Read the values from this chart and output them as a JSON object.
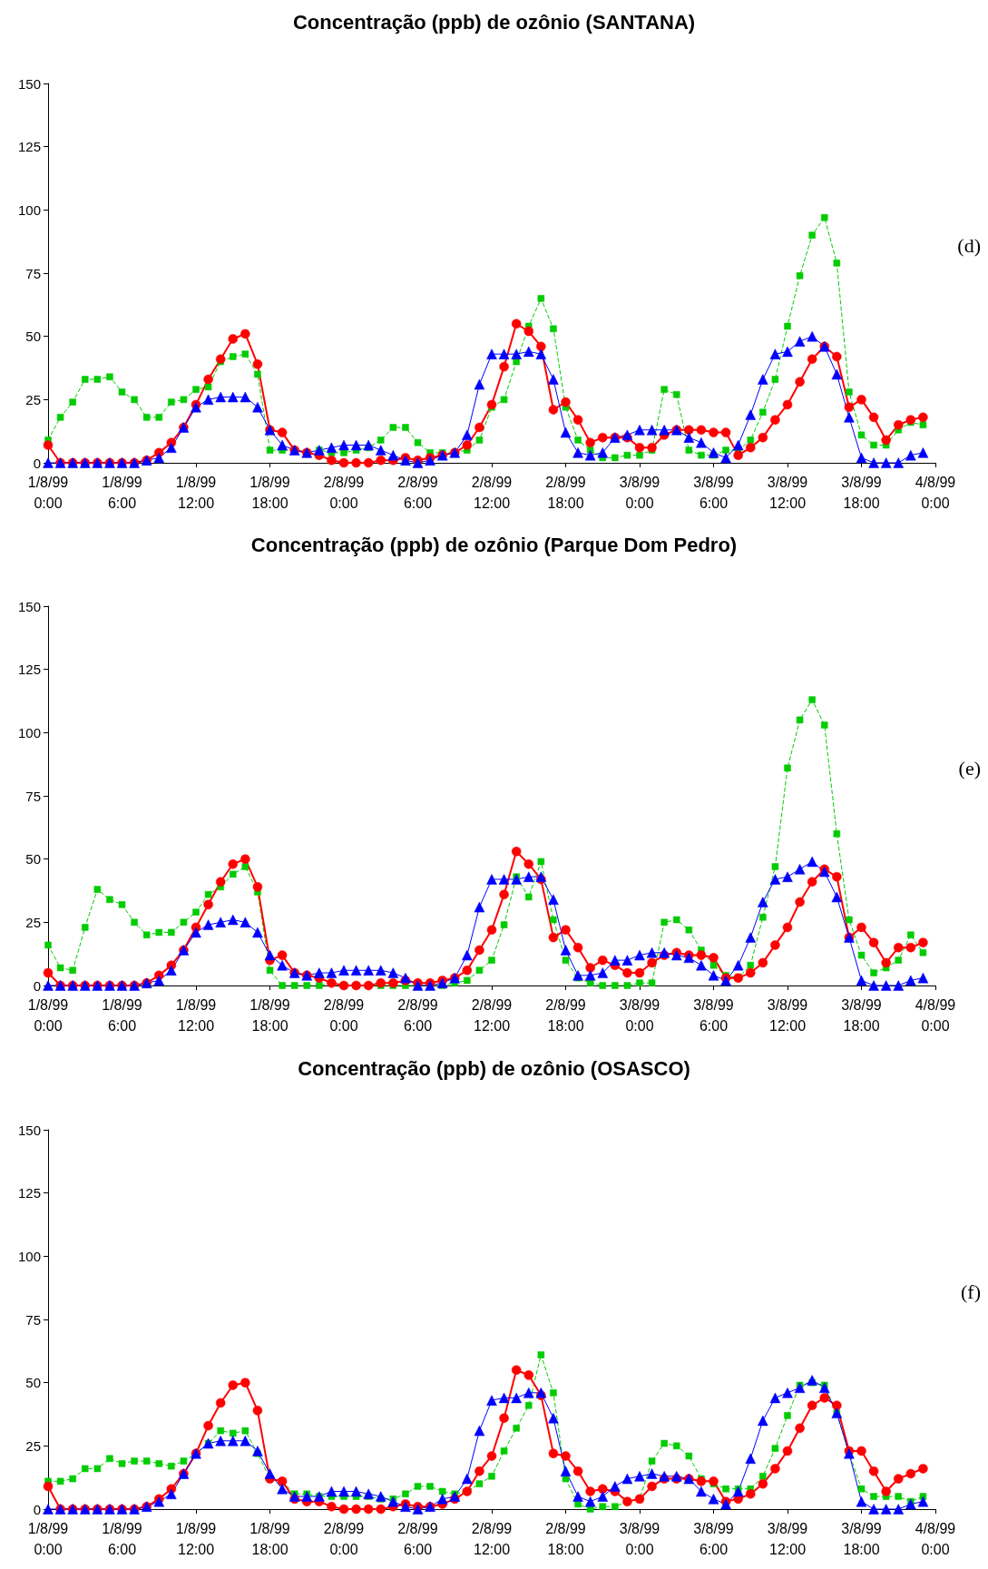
{
  "chart_data": [
    {
      "type": "line",
      "title": "Concentração (ppb) de ozônio (SANTANA)",
      "annotations": [
        "(d)"
      ],
      "categories": [
        "1/8/99\n0:00",
        null,
        null,
        null,
        null,
        null,
        "1/8/99\n6:00",
        null,
        null,
        null,
        null,
        null,
        "1/8/99\n12:00",
        null,
        null,
        null,
        null,
        null,
        "1/8/99\n18:00",
        null,
        null,
        null,
        null,
        null,
        "2/8/99\n0:00",
        null,
        null,
        null,
        null,
        null,
        "2/8/99\n6:00",
        null,
        null,
        null,
        null,
        null,
        "2/8/99\n12:00",
        null,
        null,
        null,
        null,
        null,
        "2/8/99\n18:00",
        null,
        null,
        null,
        null,
        null,
        "3/8/99\n0:00",
        null,
        null,
        null,
        null,
        null,
        "3/8/99\n6:00",
        null,
        null,
        null,
        null,
        null,
        "3/8/99\n12:00",
        null,
        null,
        null,
        null,
        null,
        "3/8/99\n18:00",
        null,
        null,
        null,
        null,
        null,
        "4/8/99\n0:00"
      ],
      "ylim": [
        0,
        150
      ],
      "yticks": [
        0,
        25,
        50,
        75,
        100,
        125,
        150
      ],
      "grid": false,
      "series": [
        {
          "color": "#00cc00",
          "marker": "square",
          "line_style": "dashed",
          "values": [
            9,
            18,
            24,
            33,
            33,
            34,
            28,
            25,
            18,
            18,
            24,
            25,
            29,
            30,
            40,
            42,
            43,
            35,
            5,
            5,
            5,
            4,
            5,
            4,
            4,
            5,
            6,
            9,
            14,
            14,
            8,
            4,
            4,
            4,
            5,
            9,
            22,
            25,
            40,
            54,
            65,
            53,
            22,
            9,
            5,
            2,
            2,
            3,
            3,
            5,
            29,
            27,
            5,
            3,
            3,
            5,
            5,
            9,
            20,
            33,
            54,
            74,
            90,
            97,
            79,
            28,
            11,
            7,
            7,
            13,
            16,
            15,
            null
          ]
        },
        {
          "color": "#ff0000",
          "marker": "circle",
          "line_style": "solid",
          "values": [
            7,
            0,
            0,
            0,
            0,
            0,
            0,
            0,
            1,
            4,
            8,
            14,
            23,
            33,
            41,
            49,
            51,
            39,
            13,
            12,
            5,
            4,
            3,
            1,
            0,
            0,
            0,
            1,
            1,
            2,
            1,
            2,
            3,
            4,
            7,
            14,
            23,
            38,
            55,
            52,
            46,
            21,
            24,
            17,
            8,
            10,
            10,
            10,
            6,
            6,
            11,
            13,
            13,
            13,
            12,
            12,
            3,
            6,
            10,
            17,
            23,
            32,
            41,
            46,
            42,
            22,
            25,
            18,
            9,
            15,
            17,
            18,
            null
          ]
        },
        {
          "color": "#0000ff",
          "marker": "triangle",
          "line_style": "solid",
          "values": [
            0,
            0,
            0,
            0,
            0,
            0,
            0,
            0,
            1,
            2,
            6,
            14,
            22,
            25,
            26,
            26,
            26,
            22,
            13,
            7,
            5,
            4,
            5,
            6,
            7,
            7,
            7,
            5,
            3,
            1,
            0,
            1,
            3,
            4,
            11,
            31,
            43,
            43,
            43,
            44,
            43,
            33,
            12,
            4,
            3,
            4,
            10,
            11,
            13,
            13,
            13,
            13,
            10,
            8,
            4,
            2,
            7,
            19,
            33,
            43,
            44,
            48,
            50,
            46,
            35,
            18,
            2,
            0,
            0,
            0,
            3,
            4,
            null
          ]
        }
      ]
    },
    {
      "type": "line",
      "title": "Concentração (ppb) de ozônio (Parque Dom Pedro)",
      "annotations": [
        "(e)"
      ],
      "categories": [
        "1/8/99\n0:00",
        null,
        null,
        null,
        null,
        null,
        "1/8/99\n6:00",
        null,
        null,
        null,
        null,
        null,
        "1/8/99\n12:00",
        null,
        null,
        null,
        null,
        null,
        "1/8/99\n18:00",
        null,
        null,
        null,
        null,
        null,
        "2/8/99\n0:00",
        null,
        null,
        null,
        null,
        null,
        "2/8/99\n6:00",
        null,
        null,
        null,
        null,
        null,
        "2/8/99\n12:00",
        null,
        null,
        null,
        null,
        null,
        "2/8/99\n18:00",
        null,
        null,
        null,
        null,
        null,
        "3/8/99\n0:00",
        null,
        null,
        null,
        null,
        null,
        "3/8/99\n6:00",
        null,
        null,
        null,
        null,
        null,
        "3/8/99\n12:00",
        null,
        null,
        null,
        null,
        null,
        "3/8/99\n18:00",
        null,
        null,
        null,
        null,
        null,
        "4/8/99\n0:00"
      ],
      "ylim": [
        0,
        150
      ],
      "yticks": [
        0,
        25,
        50,
        75,
        100,
        125,
        150
      ],
      "grid": false,
      "series": [
        {
          "color": "#00cc00",
          "marker": "square",
          "line_style": "dashed",
          "values": [
            16,
            7,
            6,
            23,
            38,
            34,
            32,
            25,
            20,
            21,
            21,
            25,
            29,
            36,
            39,
            44,
            47,
            37,
            6,
            0,
            0,
            0,
            0,
            1,
            0,
            0,
            0,
            0,
            0,
            0,
            0,
            0,
            0,
            1,
            2,
            6,
            10,
            24,
            43,
            35,
            49,
            26,
            10,
            3,
            1,
            0,
            0,
            0,
            1,
            1,
            25,
            26,
            22,
            14,
            8,
            4,
            3,
            8,
            27,
            47,
            86,
            105,
            113,
            103,
            60,
            26,
            12,
            5,
            7,
            10,
            20,
            13,
            null
          ]
        },
        {
          "color": "#ff0000",
          "marker": "circle",
          "line_style": "solid",
          "values": [
            5,
            0,
            0,
            0,
            0,
            0,
            0,
            0,
            1,
            4,
            8,
            14,
            23,
            32,
            41,
            48,
            50,
            39,
            10,
            12,
            5,
            4,
            3,
            1,
            0,
            0,
            0,
            1,
            1,
            2,
            1,
            1,
            2,
            3,
            6,
            14,
            22,
            36,
            53,
            48,
            42,
            19,
            22,
            15,
            7,
            10,
            8,
            5,
            5,
            9,
            12,
            13,
            12,
            12,
            11,
            3,
            3,
            5,
            9,
            16,
            23,
            33,
            41,
            46,
            43,
            19,
            23,
            17,
            9,
            15,
            15,
            17,
            null
          ]
        },
        {
          "color": "#0000ff",
          "marker": "triangle",
          "line_style": "solid",
          "values": [
            0,
            0,
            0,
            0,
            0,
            0,
            0,
            0,
            1,
            2,
            6,
            14,
            21,
            24,
            25,
            26,
            25,
            21,
            12,
            8,
            5,
            4,
            5,
            5,
            6,
            6,
            6,
            6,
            5,
            3,
            0,
            0,
            1,
            3,
            12,
            31,
            42,
            42,
            42,
            43,
            43,
            34,
            14,
            4,
            4,
            5,
            10,
            10,
            12,
            13,
            13,
            12,
            11,
            8,
            4,
            2,
            8,
            19,
            33,
            42,
            43,
            46,
            49,
            45,
            35,
            19,
            2,
            0,
            0,
            0,
            2,
            3,
            null
          ]
        }
      ]
    },
    {
      "type": "line",
      "title": "Concentração (ppb) de ozônio (OSASCO)",
      "annotations": [
        "(f)"
      ],
      "categories": [
        "1/8/99\n0:00",
        null,
        null,
        null,
        null,
        null,
        "1/8/99\n6:00",
        null,
        null,
        null,
        null,
        null,
        "1/8/99\n12:00",
        null,
        null,
        null,
        null,
        null,
        "1/8/99\n18:00",
        null,
        null,
        null,
        null,
        null,
        "2/8/99\n0:00",
        null,
        null,
        null,
        null,
        null,
        "2/8/99\n6:00",
        null,
        null,
        null,
        null,
        null,
        "2/8/99\n12:00",
        null,
        null,
        null,
        null,
        null,
        "2/8/99\n18:00",
        null,
        null,
        null,
        null,
        null,
        "3/8/99\n0:00",
        null,
        null,
        null,
        null,
        null,
        "3/8/99\n6:00",
        null,
        null,
        null,
        null,
        null,
        "3/8/99\n12:00",
        null,
        null,
        null,
        null,
        null,
        "3/8/99\n18:00",
        null,
        null,
        null,
        null,
        null,
        "4/8/99\n0:00"
      ],
      "ylim": [
        0,
        150
      ],
      "yticks": [
        0,
        25,
        50,
        75,
        100,
        125,
        150
      ],
      "grid": false,
      "series": [
        {
          "color": "#00cc00",
          "marker": "square",
          "line_style": "dashed",
          "values": [
            11,
            11,
            12,
            16,
            16,
            20,
            18,
            19,
            19,
            18,
            17,
            19,
            22,
            26,
            31,
            30,
            31,
            22,
            12,
            11,
            6,
            6,
            5,
            5,
            5,
            5,
            5,
            4,
            4,
            6,
            9,
            9,
            7,
            6,
            7,
            10,
            13,
            23,
            32,
            41,
            61,
            46,
            12,
            2,
            0,
            1,
            1,
            3,
            4,
            19,
            26,
            25,
            21,
            12,
            10,
            8,
            8,
            8,
            13,
            24,
            37,
            49,
            50,
            49,
            38,
            22,
            8,
            5,
            5,
            5,
            3,
            5,
            null
          ]
        },
        {
          "color": "#ff0000",
          "marker": "circle",
          "line_style": "solid",
          "values": [
            9,
            0,
            0,
            0,
            0,
            0,
            0,
            0,
            1,
            4,
            8,
            14,
            22,
            33,
            42,
            49,
            50,
            39,
            12,
            11,
            4,
            3,
            3,
            1,
            0,
            0,
            0,
            0,
            1,
            2,
            1,
            1,
            2,
            4,
            7,
            15,
            21,
            36,
            55,
            53,
            45,
            22,
            21,
            15,
            7,
            8,
            7,
            3,
            4,
            9,
            12,
            12,
            12,
            11,
            11,
            3,
            4,
            6,
            10,
            16,
            23,
            32,
            41,
            44,
            41,
            23,
            23,
            15,
            7,
            12,
            14,
            16,
            null
          ]
        },
        {
          "color": "#0000ff",
          "marker": "triangle",
          "line_style": "solid",
          "values": [
            0,
            0,
            0,
            0,
            0,
            0,
            0,
            0,
            1,
            3,
            6,
            14,
            22,
            26,
            27,
            27,
            27,
            23,
            14,
            8,
            5,
            5,
            5,
            7,
            7,
            7,
            6,
            5,
            3,
            1,
            0,
            1,
            4,
            5,
            12,
            31,
            43,
            44,
            44,
            46,
            46,
            36,
            15,
            5,
            3,
            5,
            9,
            12,
            13,
            14,
            13,
            13,
            12,
            7,
            4,
            2,
            7,
            20,
            35,
            44,
            46,
            48,
            51,
            48,
            38,
            22,
            3,
            0,
            0,
            0,
            2,
            3,
            null
          ]
        }
      ]
    }
  ]
}
